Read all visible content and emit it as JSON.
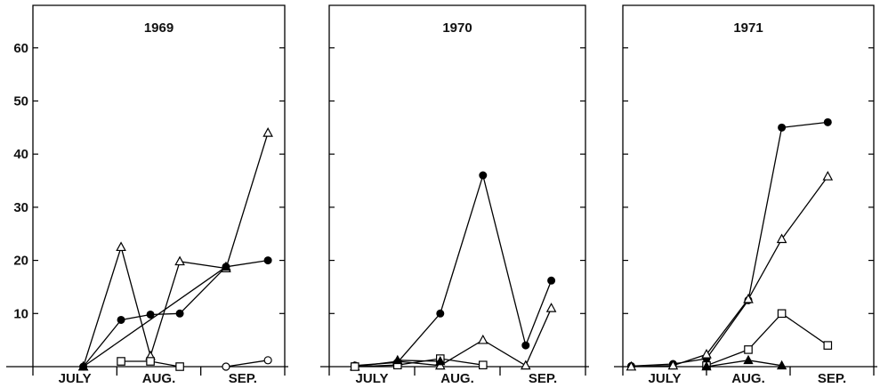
{
  "chart_data": {
    "type": "line",
    "shared_y_ticks": [
      10,
      20,
      30,
      40,
      50,
      60
    ],
    "ylim": [
      0,
      68
    ],
    "panels": [
      {
        "title": "1969",
        "month_labels": [
          "JULY",
          "AUG.",
          "SEP."
        ],
        "xlim": [
          0,
          3
        ],
        "series": [
          {
            "marker": "filled-circle",
            "points": [
              [
                0.6,
                0
              ],
              [
                1.05,
                8.8
              ],
              [
                1.4,
                9.8
              ],
              [
                1.75,
                10
              ],
              [
                2.3,
                18.8
              ],
              [
                2.8,
                20
              ]
            ]
          },
          {
            "marker": "open-triangle",
            "points": [
              [
                0.6,
                0
              ],
              [
                1.05,
                22.5
              ],
              [
                1.4,
                2
              ],
              [
                1.75,
                19.8
              ],
              [
                2.3,
                18.5
              ],
              [
                2.8,
                44
              ]
            ]
          },
          {
            "marker": "open-square",
            "points": [
              [
                1.05,
                1
              ],
              [
                1.4,
                1
              ],
              [
                1.75,
                0
              ]
            ]
          },
          {
            "marker": "open-circle",
            "points": [
              [
                2.3,
                0
              ],
              [
                2.8,
                1.2
              ]
            ]
          },
          {
            "marker": "filled-triangle",
            "points": [
              [
                0.6,
                0
              ],
              [
                2.3,
                18.8
              ]
            ]
          }
        ]
      },
      {
        "title": "1970",
        "month_labels": [
          "JULY",
          "AUG.",
          "SEP."
        ],
        "xlim": [
          0,
          3
        ],
        "series": [
          {
            "marker": "filled-circle",
            "points": [
              [
                0.3,
                0.2
              ],
              [
                0.8,
                0.8
              ],
              [
                1.3,
                10
              ],
              [
                1.8,
                36
              ],
              [
                2.3,
                4
              ],
              [
                2.6,
                16.2
              ]
            ]
          },
          {
            "marker": "open-triangle",
            "points": [
              [
                0.3,
                0
              ],
              [
                0.8,
                1
              ],
              [
                1.3,
                0.2
              ],
              [
                1.8,
                5
              ],
              [
                2.3,
                0.2
              ],
              [
                2.6,
                11
              ]
            ]
          },
          {
            "marker": "open-square",
            "points": [
              [
                0.3,
                0
              ],
              [
                0.8,
                0.3
              ],
              [
                1.3,
                1.5
              ],
              [
                1.8,
                0.3
              ]
            ]
          },
          {
            "marker": "filled-triangle",
            "points": [
              [
                0.8,
                1.2
              ],
              [
                1.3,
                1
              ]
            ]
          }
        ]
      },
      {
        "title": "1971",
        "month_labels": [
          "JULY",
          "AUG.",
          "SEP."
        ],
        "xlim": [
          0,
          3
        ],
        "series": [
          {
            "marker": "filled-circle",
            "points": [
              [
                0.1,
                0.1
              ],
              [
                0.6,
                0.5
              ],
              [
                1.0,
                1.5
              ],
              [
                1.5,
                12.5
              ],
              [
                1.9,
                45
              ],
              [
                2.45,
                46
              ]
            ]
          },
          {
            "marker": "open-triangle",
            "points": [
              [
                0.1,
                0
              ],
              [
                0.6,
                0.2
              ],
              [
                1.0,
                2.3
              ],
              [
                1.5,
                12.7
              ],
              [
                1.9,
                24
              ],
              [
                2.45,
                35.8
              ]
            ]
          },
          {
            "marker": "open-square",
            "points": [
              [
                1.0,
                0.2
              ],
              [
                1.5,
                3.2
              ],
              [
                1.9,
                10
              ],
              [
                2.45,
                4
              ]
            ]
          },
          {
            "marker": "filled-triangle",
            "points": [
              [
                1.0,
                0
              ],
              [
                1.5,
                1.2
              ],
              [
                1.9,
                0.2
              ]
            ]
          }
        ]
      }
    ]
  }
}
